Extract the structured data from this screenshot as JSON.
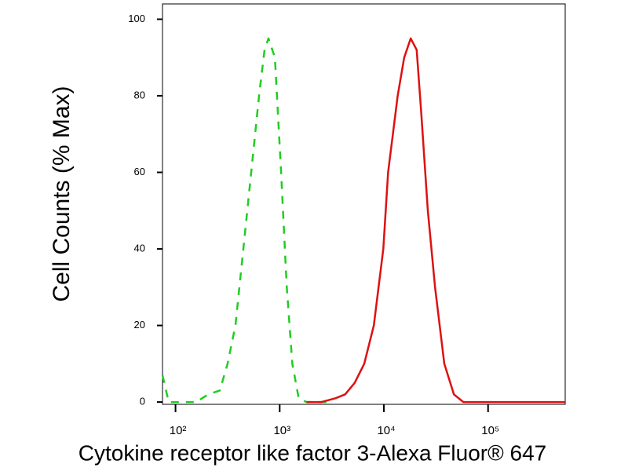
{
  "chart_data": {
    "type": "line",
    "x_label": "Cytokine receptor like factor 3-Alexa Fluor® 647",
    "y_label": "Cell Counts (% Max)",
    "xscale": "log",
    "xlim": [
      75,
      550000
    ],
    "ylim": [
      -0.6,
      104
    ],
    "xticks": [
      {
        "value": 100,
        "label": "10²"
      },
      {
        "value": 1000,
        "label": "10³"
      },
      {
        "value": 10000,
        "label": "10⁴"
      },
      {
        "value": 100000,
        "label": "10⁵"
      }
    ],
    "yticks": [
      0,
      20,
      40,
      60,
      80,
      100
    ],
    "series": [
      {
        "color": "#22cc22",
        "dashed": true,
        "x": [
          75,
          86,
          112,
          158,
          206,
          266,
          316,
          376,
          448,
          533,
          634,
          715,
          780,
          899,
          1031,
          1168,
          1322,
          1522,
          1811,
          3000
        ],
        "values": [
          7,
          0,
          0,
          0,
          2,
          3,
          10,
          20,
          40,
          60,
          80,
          92,
          95,
          90,
          60,
          30,
          10,
          1,
          0,
          0
        ]
      },
      {
        "color": "#dd1111",
        "dashed": false,
        "x": [
          1811,
          2512,
          3437,
          4247,
          5244,
          6478,
          8000,
          9878,
          10976,
          13555,
          15660,
          18090,
          20660,
          22890,
          26420,
          31000,
          38020,
          46950,
          57970,
          116700,
          550000
        ],
        "values": [
          0,
          0,
          1,
          2,
          5,
          10,
          20,
          40,
          60,
          80,
          90,
          95,
          92,
          75,
          50,
          30,
          10,
          2,
          0,
          0,
          0
        ]
      }
    ]
  }
}
